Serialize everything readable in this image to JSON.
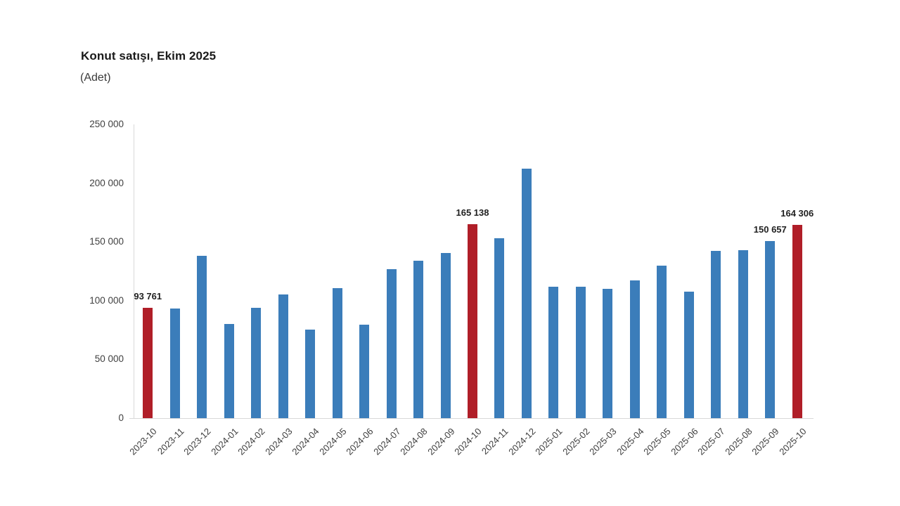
{
  "chart": {
    "title": "Konut satışı, Ekim 2025",
    "subtitle": "(Adet)",
    "colors": {
      "bar": "#3b7dba",
      "highlight": "#b01e28",
      "axis_line": "#d9d9d9",
      "tick_text": "#3f3f3f",
      "data_label_text": "#1f1f1f",
      "background": "#ffffff"
    }
  },
  "chart_data": {
    "type": "bar",
    "title": "Konut satışı, Ekim 2025",
    "subtitle": "(Adet)",
    "xlabel": "",
    "ylabel": "Adet",
    "ylim": [
      0,
      250000
    ],
    "yticks": [
      0,
      50000,
      100000,
      150000,
      200000,
      250000
    ],
    "ytick_labels": [
      "0",
      "50 000",
      "100 000",
      "150 000",
      "200 000",
      "250 000"
    ],
    "grid": false,
    "legend_position": "none",
    "bar_color": "#3b7dba",
    "highlight_color": "#b01e28",
    "categories": [
      "2023-10",
      "2023-11",
      "2023-12",
      "2024-01",
      "2024-02",
      "2024-03",
      "2024-04",
      "2024-05",
      "2024-06",
      "2024-07",
      "2024-08",
      "2024-09",
      "2024-10",
      "2024-11",
      "2024-12",
      "2025-01",
      "2025-02",
      "2025-03",
      "2025-04",
      "2025-05",
      "2025-06",
      "2025-07",
      "2025-08",
      "2025-09",
      "2025-10"
    ],
    "values": [
      93761,
      93500,
      138300,
      80300,
      93900,
      105200,
      75500,
      110600,
      79400,
      126800,
      134000,
      140600,
      165138,
      152900,
      212600,
      111700,
      112100,
      110100,
      117300,
      129900,
      107500,
      142500,
      143200,
      150657,
      164306
    ],
    "highlighted_categories": [
      "2023-10",
      "2024-10",
      "2025-10"
    ],
    "data_labels": {
      "2023-10": "93 761",
      "2024-10": "165 138",
      "2025-09": "150 657",
      "2025-10": "164 306"
    }
  }
}
